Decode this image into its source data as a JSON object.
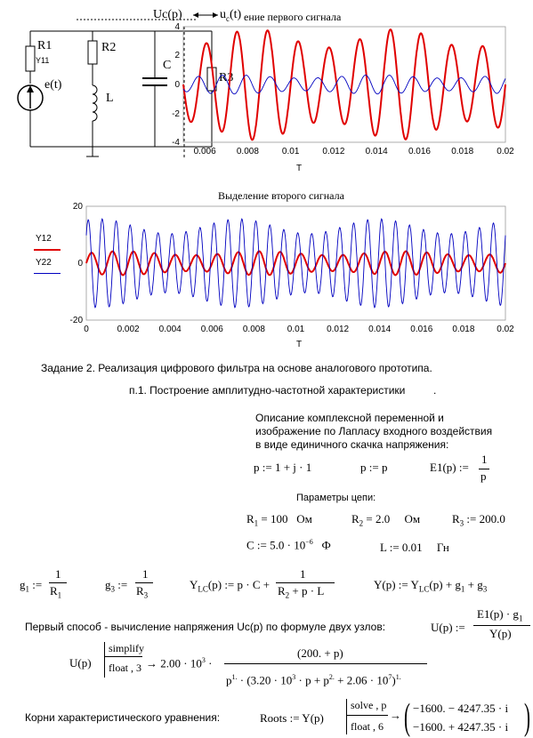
{
  "chart_data": [
    {
      "type": "line",
      "title": "ение  первого сигнала",
      "xlabel": "T",
      "x_ticks": [
        "0.006",
        "0.008",
        "0.01",
        "0.012",
        "0.014",
        "0.016",
        "0.018",
        "0.02"
      ],
      "y_ticks": [
        "4",
        "2",
        "0",
        "-2",
        "-4"
      ],
      "xlim": [
        0.005,
        0.02
      ],
      "ylim": [
        -4,
        4
      ],
      "series": [
        {
          "color": "#e00000",
          "amplitude": 3.2,
          "freq_per_unit": 700
        },
        {
          "color": "#0000c0",
          "amplitude": 0.55,
          "freq_per_unit": 900
        }
      ]
    },
    {
      "type": "line",
      "title": "Выделение второго сигнала",
      "xlabel": "T",
      "legend": [
        "Y12",
        "Y22"
      ],
      "x_ticks": [
        "0",
        "0.002",
        "0.004",
        "0.006",
        "0.008",
        "0.01",
        "0.012",
        "0.014",
        "0.016",
        "0.018",
        "0.02"
      ],
      "y_ticks": [
        "20",
        "0",
        "-20"
      ],
      "xlim": [
        0,
        0.02
      ],
      "ylim": [
        -20,
        20
      ],
      "series": [
        {
          "name": "Y12",
          "color": "#e00000",
          "amplitude": 3.5,
          "freq_per_unit": 1000
        },
        {
          "name": "Y22",
          "color": "#0000c0",
          "amplitude": 13,
          "freq_per_unit": 1500
        }
      ]
    }
  ],
  "circuit": {
    "uc_label": "Uc(p)",
    "uc_small": "u",
    "uc_small_sub": "c",
    "uc_small_tail": "(t)",
    "r1": "R1",
    "y11": "Y11",
    "r2": "R2",
    "c": "C",
    "l": "L",
    "r3": "R3",
    "e": "e(t)"
  },
  "text": {
    "task": "Задание 2. Реализация цифрового фильтра на основе аналогового прототипа.",
    "p1": "п.1. Построение амплитудно-частотной характеристики",
    "p1_dot": ".",
    "desc1": "Описание комплексной переменной и",
    "desc2": "изображение по Лапласу входного воздействия",
    "desc3": "в виде единичного скачка напряжения:",
    "p_def": "p := 1 + j · 1",
    "p_def2": "p := p",
    "e1_left": "E1(p) :=",
    "e1_num": "1",
    "e1_den": "p",
    "params": "Параметры цепи:",
    "r1_val": "= 100",
    "r1_unit": "Ом",
    "r2_val": "= 2.0",
    "r2_unit": "Ом",
    "r3_val": ":= 200.0",
    "c_def": "C := 5.0 · 10",
    "c_exp": "−6",
    "c_unit": "Ф",
    "l_def": "L := 0.01",
    "l_unit": "Гн",
    "g1_left": "g",
    "g1_sub": "1",
    "g1_eq": ":=",
    "frac_num": "1",
    "rsub1": "1",
    "rsub3": "3",
    "g3_left": "g",
    "g3_sub": "3",
    "ylc_def": "(p) := p · C +",
    "ylc_den": "R",
    "ylc_den2": "+ p · L",
    "y_def": "Y(p) := Y",
    "y_def2": "(p) + g",
    "y_def3": "+ g",
    "method1": "Первый способ - вычисление напряжения Uc(p) по формуле двух узлов:",
    "u_left": "U(p) :=",
    "u_num": "E1(p) · g",
    "u_den": "Y(p)",
    "u2_left": "U(p)",
    "simplify": "simplify",
    "float3": "float , 3",
    "u_res": "→ 2.00 · 10",
    "u_res_exp": "3",
    "u_res2": "·",
    "u_res_num": "(200. + p)",
    "u_res_den": "p",
    "u_res_den2": "· (3.20 · 10",
    "u_res_den3": "· p + p",
    "u_res_den4": "+ 2.06 · 10",
    "u_res_den5": ")",
    "roots_title": "Корни характеристического уравнения:",
    "roots_left": "Roots := Y(p)",
    "solve": "solve , p",
    "float6": "float , 6",
    "root1": "−1600. − 4247.35 · i",
    "root2": "−1600. + 4247.35 · i"
  }
}
